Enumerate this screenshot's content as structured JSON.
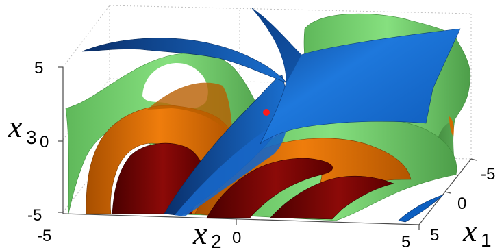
{
  "plot": {
    "type": "3d-surface",
    "grid": true,
    "axes": {
      "x1": {
        "label": "x",
        "subscript": "1",
        "ticks": [
          "-5",
          "0",
          "5"
        ]
      },
      "x2": {
        "label": "x",
        "subscript": "2",
        "ticks": [
          "-5",
          "0",
          "5"
        ]
      },
      "x3": {
        "label": "x",
        "subscript": "3",
        "ticks": [
          "5",
          "0",
          "-5"
        ]
      }
    },
    "surfaces": [
      {
        "name": "",
        "color": "#006ee0"
      },
      {
        "name": "",
        "color": "#78d873"
      },
      {
        "name": "",
        "color": "#e07200"
      },
      {
        "name": "",
        "color": "#8a0000"
      }
    ],
    "marker": {
      "color": "#ff1a1a"
    }
  }
}
